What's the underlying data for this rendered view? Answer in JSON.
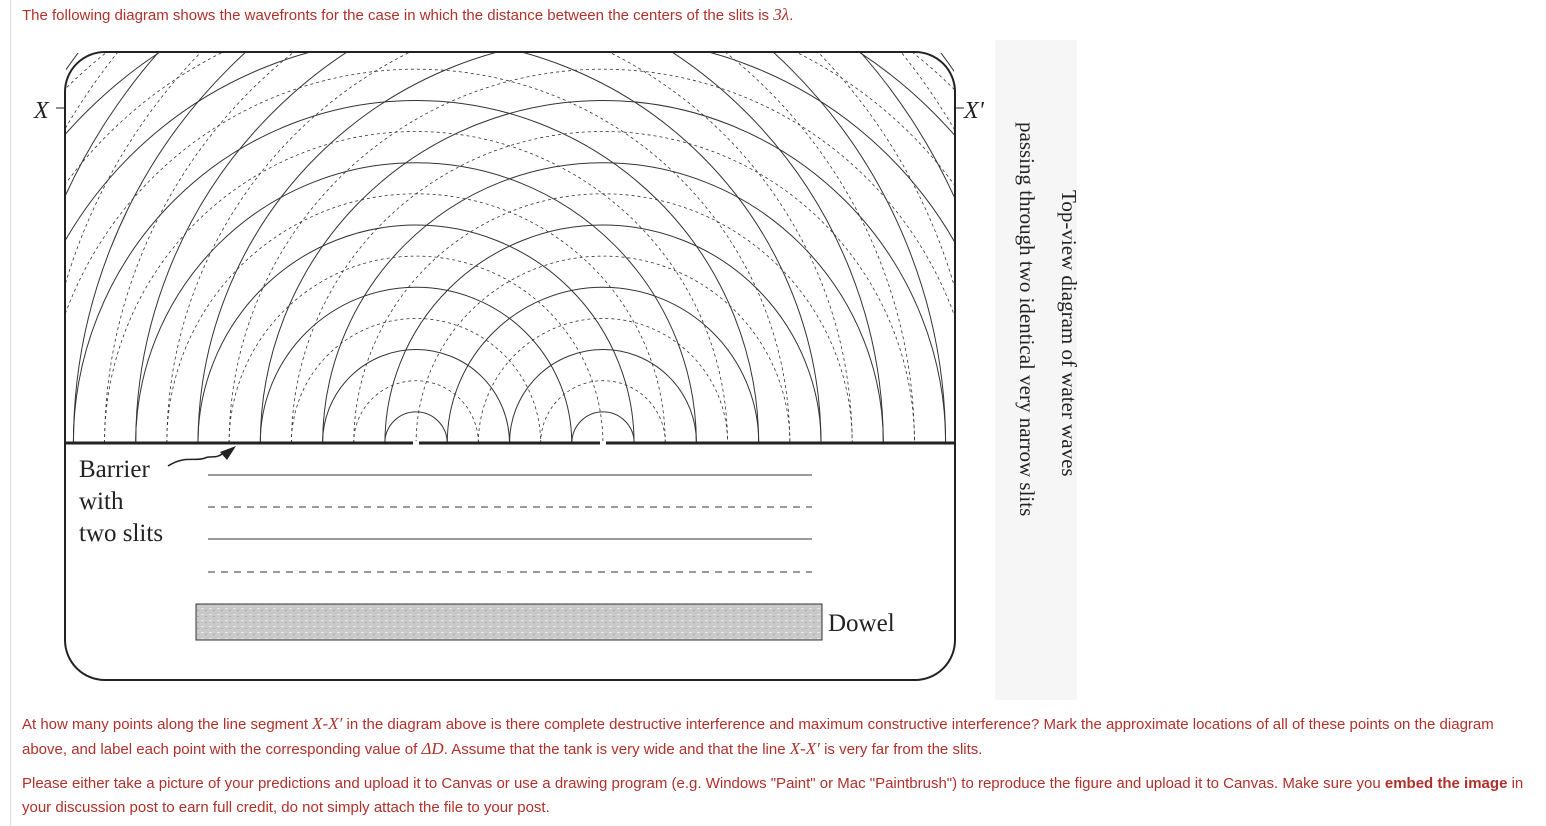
{
  "intro": [
    "The following diagram shows the wavefronts for the case in which the distance between the centers of the slits is ",
    "3λ",
    "."
  ],
  "diagram": {
    "x_label": "X",
    "x_prime_label": "X'",
    "barrier_label": [
      "Barrier",
      "with",
      "two slits"
    ],
    "dowel_label": "Dowel",
    "caption": [
      "Top-view diagram of water waves",
      "passing through two identical very narrow slits"
    ]
  },
  "question": [
    "At how many points along the line segment ",
    "X-X′",
    " in the diagram above is there complete destructive interference and maximum constructive interference?  Mark the approximate locations of all of these points on the diagram above, and label each point with the corresponding value of ",
    "ΔD",
    ".  Assume that the tank is very wide and that the line ",
    "X-X′",
    " is very far from the slits."
  ],
  "instructions": [
    "Please either take a picture of your predictions and upload it to Canvas or use a drawing program (e.g. Windows \"Paint\" or Mac \"Paintbrush\") to reproduce the figure and upload it to Canvas.  Make sure you ",
    "embed the image",
    " in your discussion post to earn full credit, do not simply attach the file to your post."
  ]
}
